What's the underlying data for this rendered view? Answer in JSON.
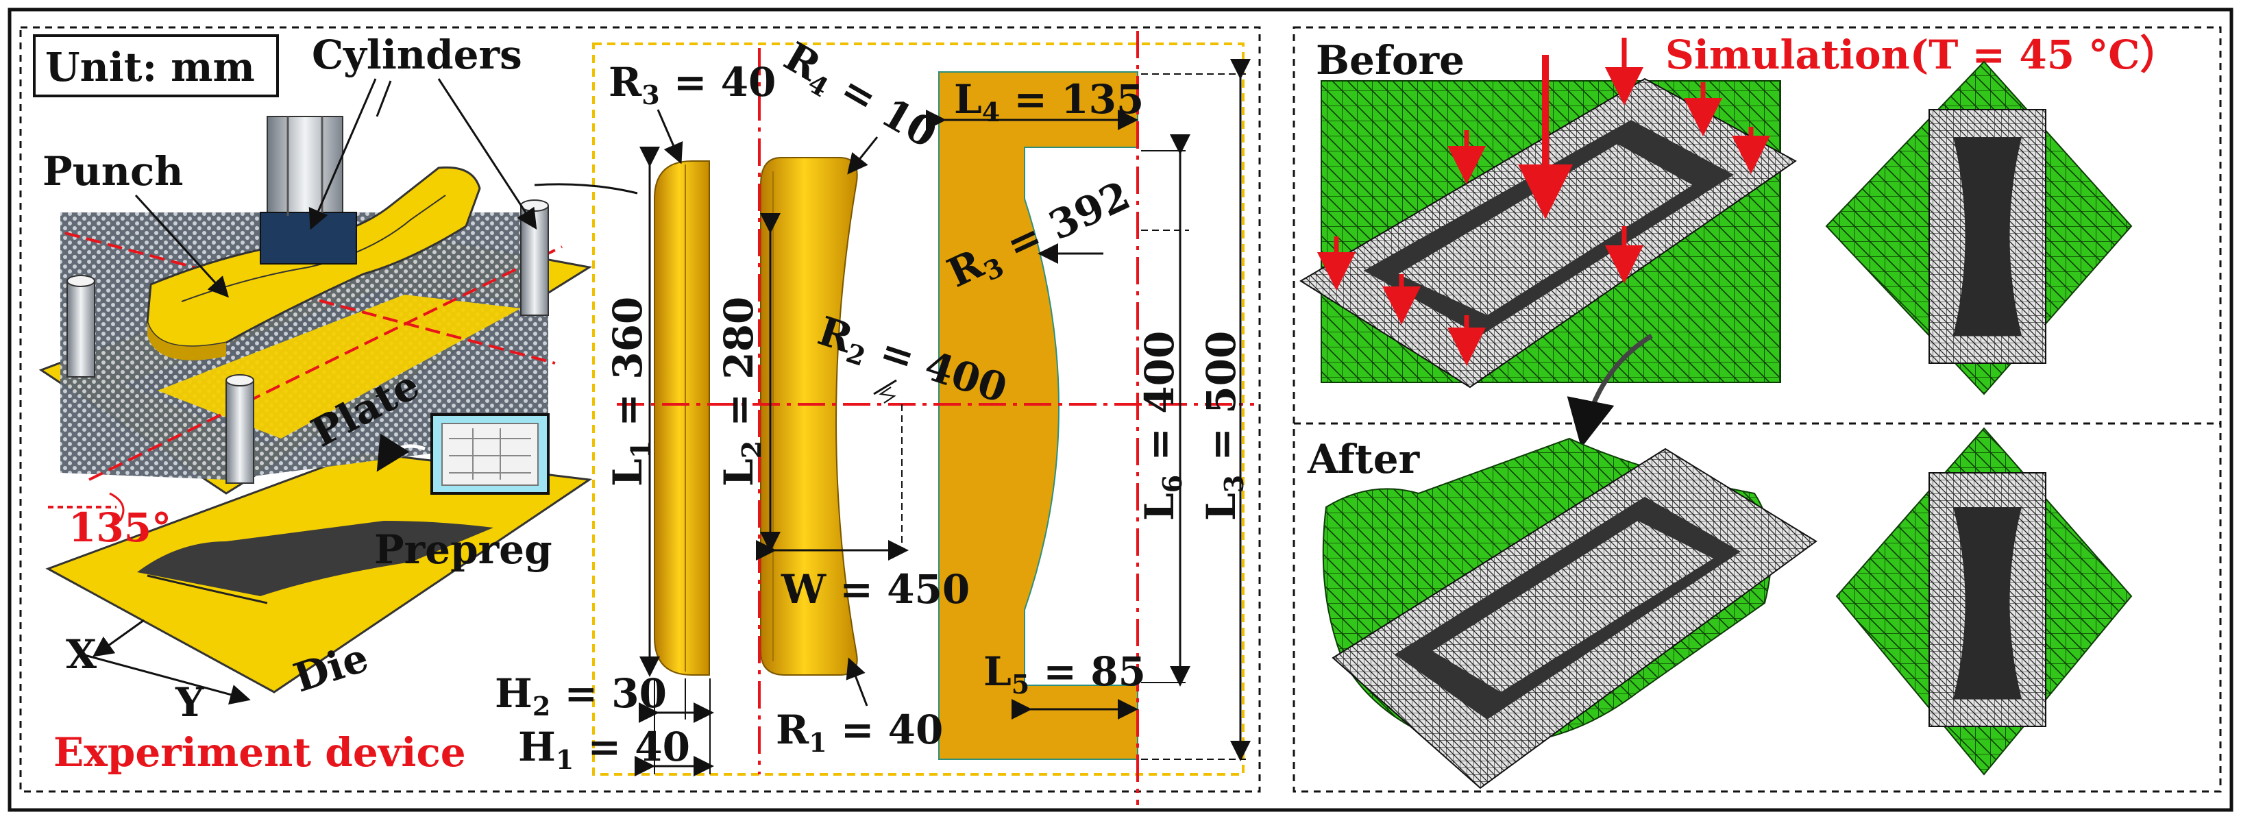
{
  "figure": {
    "left_panel": {
      "unit_label": "Unit: mm",
      "cylinders": "Cylinders",
      "punch": "Punch",
      "plate": "Plate",
      "prepreg": "Prepreg",
      "die": "Die",
      "angle": "135°",
      "axis_x": "X",
      "axis_y": "Y",
      "caption": "Experiment device"
    },
    "dimensions": {
      "r3_punch": {
        "base": "R",
        "sub": "3",
        "rest": " = 40"
      },
      "r4": {
        "base": "R",
        "sub": "4",
        "rest": " = 10"
      },
      "r3_plate": {
        "base": "R",
        "sub": "3",
        "rest": " = 392"
      },
      "r2": {
        "base": "R",
        "sub": "2",
        "rest": " = 400"
      },
      "r1": {
        "base": "R",
        "sub": "1",
        "rest": " = 40"
      },
      "l1": {
        "base": "L",
        "sub": "1",
        "rest": " = 360"
      },
      "l2": {
        "base": "L",
        "sub": "2",
        "rest": " = 280"
      },
      "l3": {
        "base": "L",
        "sub": "3",
        "rest": " = 500"
      },
      "l4": {
        "base": "L",
        "sub": "4",
        "rest": " = 135"
      },
      "l5": {
        "base": "L",
        "sub": "5",
        "rest": " = 85"
      },
      "l6": {
        "base": "L",
        "sub": "6",
        "rest": " = 400"
      },
      "h1": {
        "base": "H",
        "sub": "1",
        "rest": " = 40"
      },
      "h2": {
        "base": "H",
        "sub": "2",
        "rest": " = 30"
      },
      "w": {
        "text": "W = 450"
      }
    },
    "right_panel": {
      "before": "Before",
      "after": "After",
      "simulation": "Simulation(T = 45 °C）"
    },
    "colors": {
      "yellow": "#f5c800",
      "gold": "#e3a20a",
      "mesh_green": "#33c61a",
      "red": "#e8141b"
    }
  }
}
